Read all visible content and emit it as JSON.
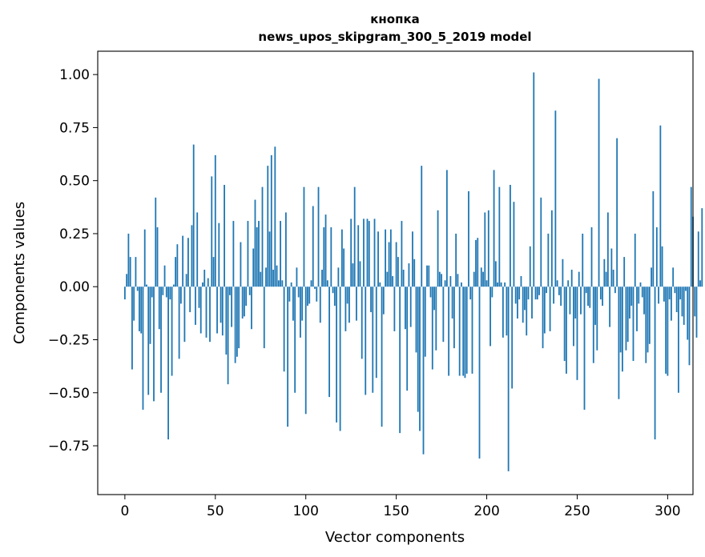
{
  "chart_data": {
    "type": "bar",
    "title": "кнопка",
    "subtitle": "news_upos_skipgram_300_5_2019 model",
    "xlabel": "Vector components",
    "ylabel": "Components values",
    "xlim": [
      -15,
      314
    ],
    "ylim": [
      -0.98,
      1.11
    ],
    "xticks": [
      0,
      50,
      100,
      150,
      200,
      250,
      300
    ],
    "yticks": [
      1.0,
      0.75,
      0.5,
      0.25,
      0.0,
      -0.25,
      -0.5,
      -0.75
    ],
    "ytick_labels": [
      "1.00",
      "0.75",
      "0.50",
      "0.25",
      "0.00",
      "−0.25",
      "−0.50",
      "−0.75"
    ],
    "bar_color": "#1f77b4",
    "values": [
      -0.06,
      0.06,
      0.25,
      0.14,
      -0.39,
      -0.16,
      0.14,
      -0.02,
      -0.21,
      -0.22,
      -0.58,
      0.27,
      0.01,
      -0.51,
      -0.27,
      -0.05,
      -0.54,
      0.42,
      0.28,
      -0.2,
      -0.5,
      -0.04,
      0.1,
      -0.05,
      -0.72,
      -0.06,
      -0.42,
      0.01,
      0.14,
      0.2,
      -0.34,
      -0.08,
      0.24,
      -0.26,
      0.06,
      0.23,
      -0.12,
      0.29,
      0.67,
      -0.18,
      0.35,
      -0.1,
      -0.22,
      0.02,
      0.08,
      -0.24,
      0.04,
      -0.26,
      0.52,
      0.14,
      0.62,
      -0.22,
      0.3,
      -0.17,
      -0.23,
      0.48,
      -0.32,
      -0.46,
      -0.04,
      -0.19,
      0.31,
      -0.36,
      -0.33,
      -0.29,
      0.21,
      -0.15,
      -0.14,
      -0.09,
      0.31,
      -0.04,
      -0.2,
      0.18,
      0.41,
      0.28,
      0.31,
      0.07,
      0.47,
      -0.29,
      0.09,
      0.57,
      0.26,
      0.62,
      0.08,
      0.66,
      0.1,
      0.03,
      0.31,
      0.03,
      -0.4,
      0.35,
      -0.66,
      -0.07,
      0.02,
      -0.16,
      -0.5,
      0.09,
      -0.05,
      -0.24,
      -0.16,
      0.47,
      -0.6,
      -0.09,
      -0.08,
      0.03,
      0.38,
      -0.01,
      -0.07,
      0.47,
      -0.17,
      0.08,
      0.28,
      0.34,
      0.03,
      -0.52,
      0.28,
      -0.03,
      -0.09,
      -0.64,
      0.09,
      -0.68,
      0.27,
      0.18,
      -0.21,
      -0.08,
      -0.17,
      0.32,
      0.11,
      0.47,
      -0.16,
      0.29,
      0.12,
      -0.34,
      0.32,
      -0.51,
      0.32,
      0.31,
      -0.12,
      -0.5,
      0.32,
      -0.43,
      0.26,
      0.02,
      -0.66,
      -0.13,
      0.27,
      0.07,
      0.21,
      0.27,
      0.05,
      -0.21,
      0.21,
      0.14,
      -0.69,
      0.31,
      0.08,
      -0.2,
      -0.49,
      0.11,
      -0.19,
      0.26,
      0.13,
      -0.31,
      -0.59,
      -0.68,
      0.57,
      -0.79,
      -0.33,
      0.1,
      0.1,
      -0.05,
      -0.39,
      -0.11,
      -0.3,
      0.36,
      0.07,
      0.06,
      -0.26,
      0.03,
      0.55,
      -0.42,
      0.05,
      -0.15,
      -0.29,
      0.25,
      0.06,
      -0.42,
      0.02,
      -0.42,
      -0.43,
      -0.41,
      0.45,
      -0.06,
      -0.41,
      0.07,
      0.22,
      0.23,
      -0.81,
      0.09,
      0.07,
      0.35,
      0.03,
      0.36,
      -0.28,
      -0.05,
      0.55,
      0.12,
      0.02,
      0.47,
      0.02,
      -0.24,
      0.02,
      -0.23,
      -0.87,
      0.48,
      -0.48,
      0.4,
      -0.08,
      -0.15,
      -0.06,
      0.05,
      -0.17,
      -0.11,
      -0.23,
      -0.06,
      0.19,
      -0.15,
      1.01,
      -0.06,
      -0.06,
      -0.04,
      0.42,
      -0.29,
      -0.22,
      -0.03,
      0.25,
      -0.21,
      0.36,
      -0.08,
      0.83,
      0.03,
      -0.04,
      -0.09,
      0.13,
      -0.35,
      -0.41,
      0.03,
      -0.13,
      0.08,
      -0.28,
      -0.15,
      -0.44,
      0.07,
      -0.13,
      0.25,
      -0.58,
      -0.03,
      -0.09,
      -0.1,
      0.28,
      -0.36,
      -0.18,
      -0.3,
      0.98,
      -0.06,
      -0.09,
      0.13,
      0.07,
      0.35,
      -0.19,
      0.18,
      0.08,
      -0.03,
      0.7,
      -0.53,
      -0.31,
      -0.4,
      0.14,
      -0.3,
      -0.26,
      -0.15,
      -0.09,
      -0.35,
      0.25,
      -0.21,
      -0.08,
      0.02,
      -0.05,
      -0.13,
      -0.36,
      -0.31,
      -0.27,
      0.09,
      0.45,
      -0.72,
      0.28,
      -0.08,
      0.76,
      0.19,
      -0.07,
      -0.41,
      -0.42,
      -0.06,
      -0.16,
      0.09,
      -0.03,
      -0.12,
      -0.5,
      -0.06,
      -0.14,
      -0.18,
      -0.02,
      -0.25,
      -0.37,
      0.47,
      0.33,
      -0.14,
      -0.24,
      0.26,
      0.03,
      0.37
    ]
  }
}
